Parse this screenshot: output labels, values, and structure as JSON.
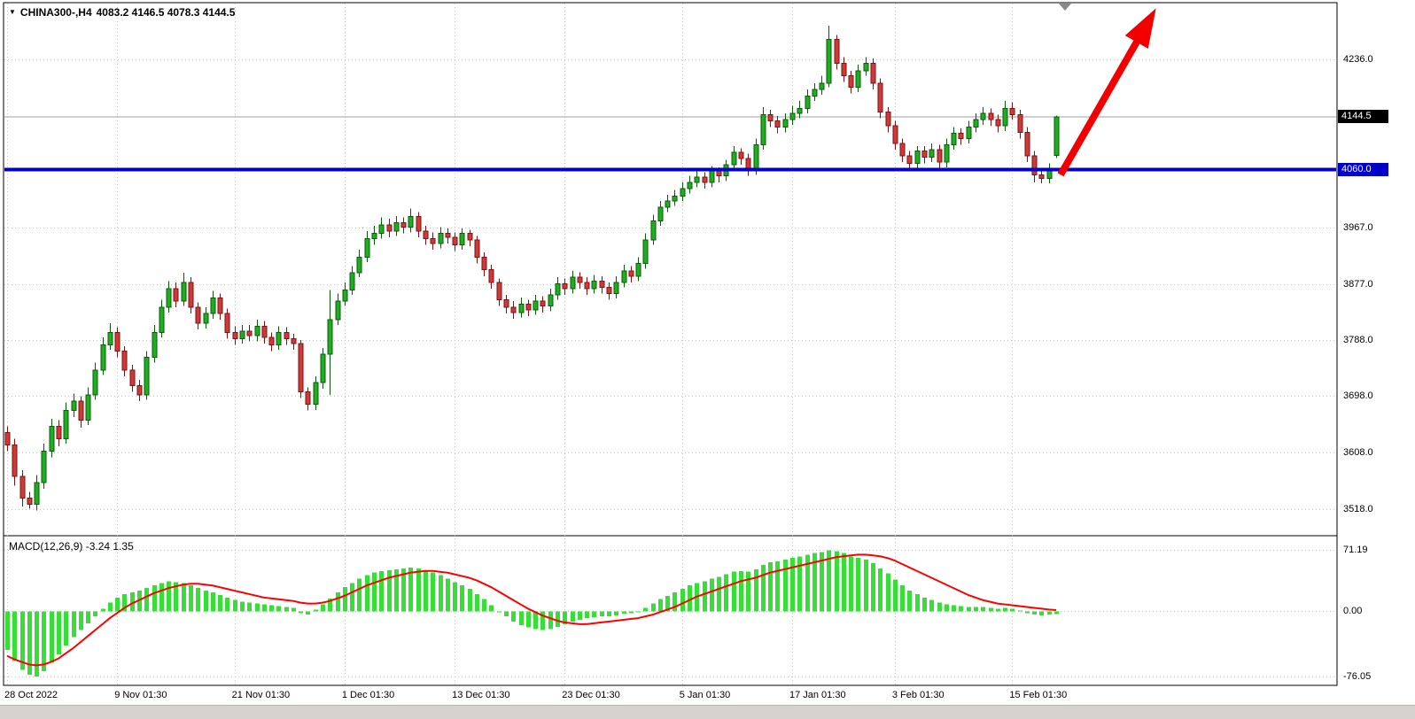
{
  "header": {
    "symbol_period": "CHINA300-,H4",
    "ohlc_values": "4083.2 4146.5 4078.3 4144.5"
  },
  "price_axis": {
    "current_price_badge": {
      "label": "4144.5",
      "bg": "#000000",
      "fg": "#ffffff"
    },
    "level_badge": {
      "label": "4060.0",
      "bg": "#0000c8",
      "fg": "#ffffff"
    }
  },
  "macd": {
    "label": "MACD(12,26,9) -3.24 1.35",
    "axis_labels": [
      "71.19",
      "0.00",
      "-76.05"
    ]
  },
  "colors": {
    "bull_fill": "#1fae1f",
    "bull_border": "#0a5c0a",
    "bear_fill": "#cc3a3a",
    "bear_border": "#801212",
    "hist": "#35df35",
    "signal": "#ff0000",
    "support_line": "#0000c8",
    "current_line": "#a0a0a0",
    "grid": "#c6c6c6",
    "arrow": "#f20000",
    "panel_border": "#000000",
    "shift_marker": "#8a8a8a"
  },
  "chart_data": {
    "type": "candlestick",
    "symbol": "CHINA300-",
    "timeframe": "H4",
    "price_ylim": [
      3475,
      4327
    ],
    "macd_ylim": [
      -86.3,
      88
    ],
    "current_price": 4144.5,
    "horizontal_level": 4060.0,
    "price_gridlines": [
      4236,
      3967,
      3877,
      3788,
      3698,
      3608,
      3518
    ],
    "macd_gridlines": [
      71.19,
      0,
      -76.05
    ],
    "time_labels": [
      {
        "text": "28 Oct 2022",
        "bar": 0
      },
      {
        "text": "9 Nov 01:30",
        "bar": 15
      },
      {
        "text": "21 Nov 01:30",
        "bar": 31
      },
      {
        "text": "1 Dec 01:30",
        "bar": 46
      },
      {
        "text": "13 Dec 01:30",
        "bar": 61
      },
      {
        "text": "23 Dec 01:30",
        "bar": 76
      },
      {
        "text": "5 Jan 01:30",
        "bar": 92
      },
      {
        "text": "17 Jan 01:30",
        "bar": 107
      },
      {
        "text": "3 Feb 01:30",
        "bar": 121
      },
      {
        "text": "15 Feb 01:30",
        "bar": 137
      }
    ],
    "candle_format": "[open, high, low, close]",
    "candles": [
      [
        3640,
        3650,
        3610,
        3620
      ],
      [
        3620,
        3630,
        3555,
        3570
      ],
      [
        3570,
        3580,
        3522,
        3535
      ],
      [
        3535,
        3545,
        3518,
        3525
      ],
      [
        3525,
        3572,
        3515,
        3560
      ],
      [
        3560,
        3622,
        3550,
        3610
      ],
      [
        3610,
        3662,
        3600,
        3650
      ],
      [
        3650,
        3660,
        3618,
        3630
      ],
      [
        3630,
        3688,
        3622,
        3675
      ],
      [
        3675,
        3702,
        3665,
        3690
      ],
      [
        3690,
        3698,
        3648,
        3660
      ],
      [
        3660,
        3712,
        3652,
        3700
      ],
      [
        3700,
        3752,
        3692,
        3740
      ],
      [
        3740,
        3792,
        3732,
        3780
      ],
      [
        3780,
        3815,
        3772,
        3800
      ],
      [
        3800,
        3808,
        3760,
        3770
      ],
      [
        3770,
        3778,
        3730,
        3740
      ],
      [
        3740,
        3748,
        3705,
        3715
      ],
      [
        3715,
        3724,
        3690,
        3700
      ],
      [
        3700,
        3770,
        3692,
        3760
      ],
      [
        3760,
        3812,
        3752,
        3800
      ],
      [
        3800,
        3852,
        3792,
        3840
      ],
      [
        3840,
        3882,
        3832,
        3870
      ],
      [
        3870,
        3880,
        3840,
        3850
      ],
      [
        3850,
        3895,
        3842,
        3880
      ],
      [
        3880,
        3888,
        3830,
        3840
      ],
      [
        3840,
        3848,
        3805,
        3815
      ],
      [
        3815,
        3840,
        3806,
        3830
      ],
      [
        3830,
        3866,
        3822,
        3855
      ],
      [
        3855,
        3862,
        3820,
        3830
      ],
      [
        3830,
        3838,
        3790,
        3800
      ],
      [
        3800,
        3810,
        3780,
        3790
      ],
      [
        3790,
        3812,
        3782,
        3802
      ],
      [
        3802,
        3812,
        3786,
        3795
      ],
      [
        3795,
        3820,
        3786,
        3810
      ],
      [
        3810,
        3818,
        3782,
        3792
      ],
      [
        3792,
        3800,
        3770,
        3780
      ],
      [
        3780,
        3810,
        3772,
        3800
      ],
      [
        3800,
        3808,
        3780,
        3790
      ],
      [
        3790,
        3798,
        3772,
        3782
      ],
      [
        3782,
        3788,
        3695,
        3705
      ],
      [
        3705,
        3712,
        3675,
        3685
      ],
      [
        3685,
        3730,
        3676,
        3720
      ],
      [
        3720,
        3775,
        3710,
        3765
      ],
      [
        3765,
        3868,
        3700,
        3820
      ],
      [
        3820,
        3862,
        3812,
        3850
      ],
      [
        3850,
        3880,
        3842,
        3868
      ],
      [
        3868,
        3906,
        3860,
        3895
      ],
      [
        3895,
        3932,
        3888,
        3920
      ],
      [
        3920,
        3962,
        3912,
        3950
      ],
      [
        3950,
        3970,
        3940,
        3958
      ],
      [
        3958,
        3984,
        3950,
        3972
      ],
      [
        3972,
        3982,
        3952,
        3962
      ],
      [
        3962,
        3986,
        3954,
        3975
      ],
      [
        3975,
        3984,
        3958,
        3968
      ],
      [
        3968,
        3998,
        3960,
        3985
      ],
      [
        3985,
        3992,
        3952,
        3962
      ],
      [
        3962,
        3970,
        3940,
        3950
      ],
      [
        3950,
        3960,
        3932,
        3942
      ],
      [
        3942,
        3968,
        3934,
        3958
      ],
      [
        3958,
        3966,
        3942,
        3952
      ],
      [
        3952,
        3960,
        3930,
        3940
      ],
      [
        3940,
        3966,
        3932,
        3958
      ],
      [
        3958,
        3964,
        3938,
        3948
      ],
      [
        3948,
        3954,
        3910,
        3920
      ],
      [
        3920,
        3928,
        3890,
        3900
      ],
      [
        3900,
        3908,
        3870,
        3880
      ],
      [
        3880,
        3886,
        3842,
        3852
      ],
      [
        3852,
        3860,
        3830,
        3840
      ],
      [
        3840,
        3850,
        3822,
        3832
      ],
      [
        3832,
        3856,
        3824,
        3845
      ],
      [
        3845,
        3852,
        3826,
        3836
      ],
      [
        3836,
        3860,
        3828,
        3850
      ],
      [
        3850,
        3858,
        3832,
        3842
      ],
      [
        3842,
        3870,
        3834,
        3860
      ],
      [
        3860,
        3888,
        3852,
        3878
      ],
      [
        3878,
        3886,
        3860,
        3870
      ],
      [
        3870,
        3898,
        3862,
        3888
      ],
      [
        3888,
        3896,
        3870,
        3880
      ],
      [
        3880,
        3888,
        3860,
        3870
      ],
      [
        3870,
        3892,
        3862,
        3882
      ],
      [
        3882,
        3890,
        3862,
        3872
      ],
      [
        3872,
        3880,
        3852,
        3862
      ],
      [
        3862,
        3890,
        3854,
        3880
      ],
      [
        3880,
        3908,
        3872,
        3898
      ],
      [
        3898,
        3906,
        3880,
        3890
      ],
      [
        3890,
        3920,
        3882,
        3910
      ],
      [
        3910,
        3958,
        3902,
        3948
      ],
      [
        3948,
        3988,
        3940,
        3978
      ],
      [
        3978,
        4010,
        3970,
        4000
      ],
      [
        4000,
        4020,
        3992,
        4010
      ],
      [
        4010,
        4028,
        4002,
        4018
      ],
      [
        4018,
        4040,
        4010,
        4030
      ],
      [
        4030,
        4050,
        4022,
        4040
      ],
      [
        4040,
        4058,
        4032,
        4048
      ],
      [
        4048,
        4056,
        4030,
        4040
      ],
      [
        4040,
        4066,
        4032,
        4058
      ],
      [
        4058,
        4064,
        4040,
        4050
      ],
      [
        4050,
        4076,
        4042,
        4068
      ],
      [
        4068,
        4098,
        4060,
        4088
      ],
      [
        4088,
        4094,
        4068,
        4078
      ],
      [
        4078,
        4086,
        4050,
        4060
      ],
      [
        4060,
        4110,
        4052,
        4100
      ],
      [
        4100,
        4160,
        4092,
        4148
      ],
      [
        4148,
        4156,
        4128,
        4138
      ],
      [
        4138,
        4146,
        4118,
        4128
      ],
      [
        4128,
        4150,
        4120,
        4140
      ],
      [
        4140,
        4162,
        4132,
        4150
      ],
      [
        4150,
        4170,
        4142,
        4158
      ],
      [
        4158,
        4188,
        4150,
        4178
      ],
      [
        4178,
        4198,
        4170,
        4188
      ],
      [
        4188,
        4210,
        4180,
        4198
      ],
      [
        4198,
        4290,
        4192,
        4268
      ],
      [
        4268,
        4275,
        4220,
        4230
      ],
      [
        4230,
        4240,
        4200,
        4210
      ],
      [
        4210,
        4218,
        4182,
        4192
      ],
      [
        4192,
        4228,
        4184,
        4218
      ],
      [
        4218,
        4240,
        4210,
        4230
      ],
      [
        4230,
        4238,
        4188,
        4198
      ],
      [
        4198,
        4206,
        4142,
        4152
      ],
      [
        4152,
        4160,
        4120,
        4130
      ],
      [
        4130,
        4138,
        4092,
        4102
      ],
      [
        4102,
        4110,
        4072,
        4082
      ],
      [
        4082,
        4090,
        4060,
        4070
      ],
      [
        4070,
        4098,
        4062,
        4090
      ],
      [
        4090,
        4098,
        4070,
        4080
      ],
      [
        4080,
        4102,
        4072,
        4092
      ],
      [
        4092,
        4100,
        4062,
        4072
      ],
      [
        4072,
        4110,
        4064,
        4100
      ],
      [
        4100,
        4128,
        4092,
        4118
      ],
      [
        4118,
        4126,
        4100,
        4110
      ],
      [
        4110,
        4138,
        4102,
        4128
      ],
      [
        4128,
        4150,
        4120,
        4140
      ],
      [
        4140,
        4160,
        4132,
        4150
      ],
      [
        4150,
        4158,
        4130,
        4140
      ],
      [
        4140,
        4148,
        4120,
        4130
      ],
      [
        4130,
        4170,
        4122,
        4158
      ],
      [
        4158,
        4168,
        4140,
        4148
      ],
      [
        4148,
        4156,
        4110,
        4120
      ],
      [
        4120,
        4128,
        4072,
        4082
      ],
      [
        4082,
        4090,
        4040,
        4052
      ],
      [
        4052,
        4060,
        4038,
        4046
      ],
      [
        4046,
        4070,
        4038,
        4062
      ],
      [
        4083.2,
        4146.5,
        4078.3,
        4144.5
      ]
    ],
    "macd_histogram": [
      -45,
      -58,
      -68,
      -74,
      -76,
      -70,
      -60,
      -50,
      -40,
      -30,
      -22,
      -14,
      -6,
      3,
      10,
      16,
      20,
      22,
      24,
      27,
      30,
      33,
      35,
      34,
      33,
      30,
      27,
      24,
      22,
      19,
      16,
      13,
      11,
      10,
      9,
      8,
      7,
      6,
      5,
      4,
      -2,
      -4,
      2,
      8,
      15,
      22,
      28,
      33,
      38,
      42,
      45,
      47,
      48,
      49,
      50,
      51,
      50,
      48,
      45,
      42,
      38,
      34,
      30,
      26,
      20,
      14,
      7,
      0,
      -6,
      -12,
      -16,
      -19,
      -21,
      -22,
      -21,
      -18,
      -15,
      -12,
      -10,
      -8,
      -7,
      -6,
      -6,
      -5,
      -3,
      -2,
      0,
      4,
      9,
      14,
      18,
      22,
      26,
      30,
      33,
      35,
      38,
      40,
      43,
      46,
      47,
      46,
      49,
      54,
      57,
      58,
      60,
      62,
      64,
      66,
      68,
      69,
      71,
      70,
      68,
      64,
      62,
      60,
      56,
      50,
      44,
      37,
      30,
      24,
      20,
      16,
      13,
      10,
      8,
      7,
      6,
      5,
      5,
      5,
      4,
      3,
      4,
      3,
      1,
      -2,
      -4,
      -5,
      -4,
      -3.24
    ],
    "macd_signal": [
      -52,
      -56,
      -59,
      -62,
      -63,
      -62,
      -59,
      -55,
      -49,
      -43,
      -36,
      -29,
      -22,
      -15,
      -8,
      -2,
      4,
      9,
      13,
      17,
      21,
      24,
      27,
      29,
      31,
      32,
      32,
      31,
      30,
      28,
      26,
      24,
      22,
      20,
      18,
      16,
      15,
      14,
      13,
      12,
      10,
      9,
      9,
      10,
      12,
      15,
      18,
      22,
      26,
      30,
      33,
      36,
      39,
      41,
      43,
      45,
      46,
      47,
      47,
      46,
      45,
      43,
      41,
      39,
      36,
      32,
      28,
      23,
      18,
      13,
      8,
      3,
      -1,
      -5,
      -8,
      -11,
      -13,
      -14,
      -15,
      -15,
      -14,
      -13,
      -12,
      -11,
      -10,
      -9,
      -8,
      -6,
      -4,
      -1,
      2,
      5,
      9,
      13,
      17,
      20,
      23,
      26,
      29,
      32,
      35,
      37,
      39,
      42,
      45,
      47,
      49,
      51,
      53,
      55,
      57,
      59,
      61,
      63,
      64,
      65,
      66,
      66,
      65,
      64,
      62,
      59,
      55,
      51,
      47,
      43,
      39,
      35,
      31,
      27,
      23,
      19,
      16,
      13,
      11,
      9,
      8,
      7,
      6,
      5,
      4,
      3,
      2,
      1.35
    ],
    "annotations": [
      {
        "type": "arrow",
        "from": {
          "bar": 143.6,
          "price": 4052
        },
        "to": {
          "bar": 156.6,
          "price": 4318
        },
        "color": "#f20000"
      },
      {
        "type": "chart-shift-marker",
        "bar": 144.2
      }
    ]
  }
}
